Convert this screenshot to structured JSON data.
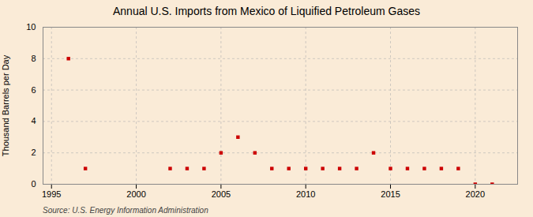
{
  "chart_data": {
    "type": "scatter",
    "title": "Annual U.S. Imports from Mexico of Liquified Petroleum Gases",
    "ylabel": "Thousand Barrels per Day",
    "source": "Source: U.S. Energy Information Administration",
    "x": [
      1996,
      1997,
      2002,
      2003,
      2004,
      2005,
      2006,
      2007,
      2008,
      2009,
      2010,
      2011,
      2012,
      2013,
      2014,
      2015,
      2016,
      2017,
      2018,
      2019,
      2020,
      2021
    ],
    "values": [
      8,
      1,
      1,
      1,
      1,
      2,
      3,
      2,
      1,
      1,
      1,
      1,
      1,
      1,
      2,
      1,
      1,
      1,
      1,
      1,
      0,
      0
    ],
    "color": "#cc0000",
    "marker": "square",
    "xlim": [
      1994.5,
      2022.5
    ],
    "xticks": [
      1995,
      2000,
      2005,
      2010,
      2015,
      2020
    ],
    "ylim": [
      0,
      10
    ],
    "yticks": [
      0,
      2,
      4,
      6,
      8,
      10
    ],
    "grid": true
  }
}
